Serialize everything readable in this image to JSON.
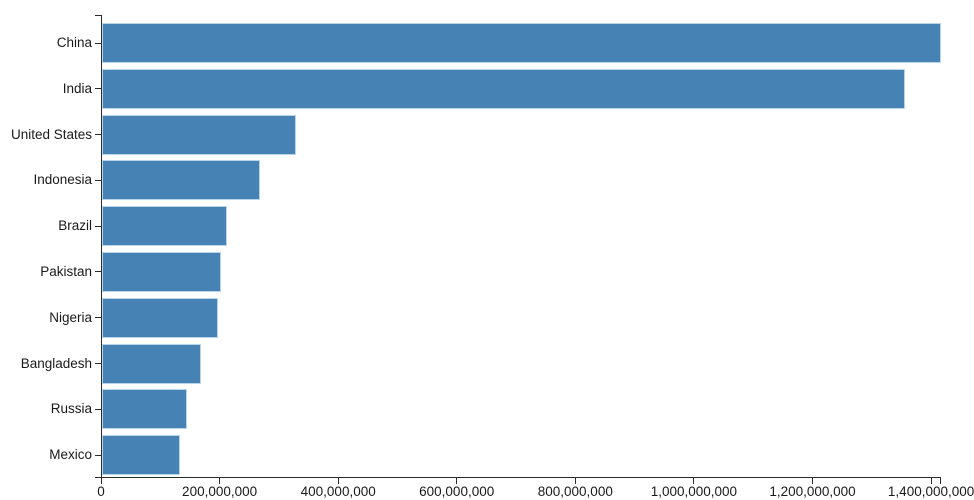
{
  "chart_data": {
    "type": "bar",
    "orientation": "horizontal",
    "title": "",
    "xlabel": "",
    "ylabel": "",
    "categories": [
      "China",
      "India",
      "United States",
      "Indonesia",
      "Brazil",
      "Pakistan",
      "Nigeria",
      "Bangladesh",
      "Russia",
      "Mexico"
    ],
    "values": [
      1415045928,
      1354051854,
      326766748,
      266794980,
      210867954,
      200813818,
      195875237,
      166368149,
      143964709,
      130759074
    ],
    "xlim": [
      0,
      1415045928
    ],
    "x_ticks": [
      0,
      200000000,
      400000000,
      600000000,
      800000000,
      1000000000,
      1200000000,
      1400000000
    ],
    "x_tick_labels": [
      "0",
      "200,000,000",
      "400,000,000",
      "600,000,000",
      "800,000,000",
      "1,000,000,000",
      "1,200,000,000",
      "1,400,000,000"
    ],
    "grid": false,
    "legend": false,
    "bar_color": "#4682b4",
    "bar_stroke": "#b9d5ea",
    "axis_color": "#2b2b2b",
    "text_color": "#1a1a1a"
  }
}
